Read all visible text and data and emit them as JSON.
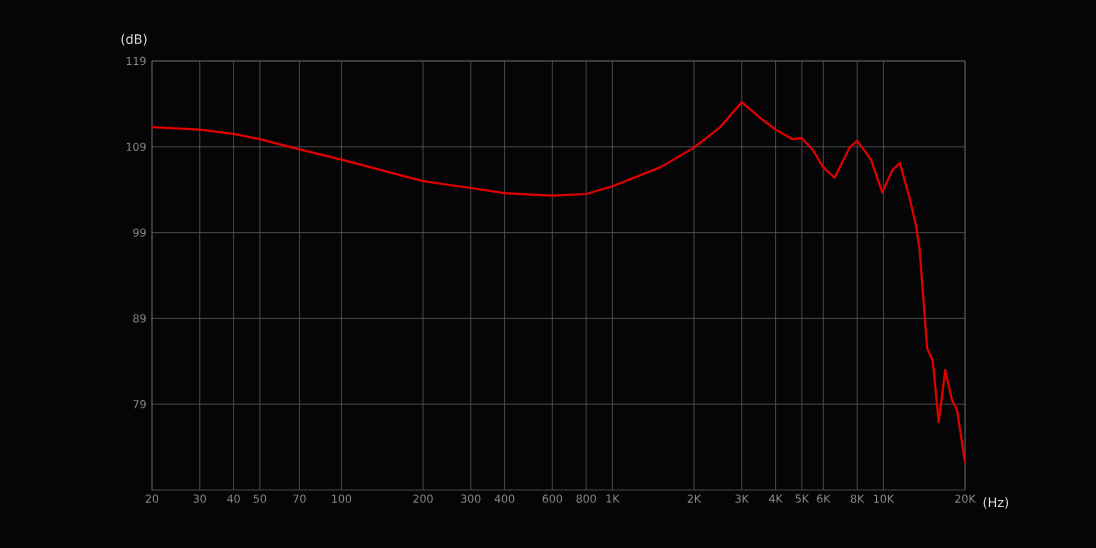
{
  "chart_data": {
    "type": "line",
    "xlabel": "(Hz)",
    "ylabel": "(dB)",
    "log": "x",
    "grid": true,
    "marker": "none",
    "line_style": "solid",
    "xlim": [
      20,
      20000
    ],
    "ylim": [
      69,
      119
    ],
    "xticks": [
      20,
      30,
      40,
      50,
      70,
      100,
      200,
      300,
      400,
      600,
      800,
      {
        "value": 1000,
        "label": "1K"
      },
      {
        "value": 2000,
        "label": "2K"
      },
      {
        "value": 3000,
        "label": "3K"
      },
      {
        "value": 4000,
        "label": "4K"
      },
      {
        "value": 5000,
        "label": "5K"
      },
      {
        "value": 6000,
        "label": "6K"
      },
      {
        "value": 8000,
        "label": "8K"
      },
      {
        "value": 10000,
        "label": "10K"
      },
      {
        "value": 20000,
        "label": "20K"
      }
    ],
    "yticks": [
      79,
      89,
      99,
      109,
      119
    ],
    "x": [
      20,
      30,
      40,
      50,
      70,
      100,
      200,
      300,
      400,
      600,
      800,
      1000,
      1500,
      2000,
      2500,
      3000,
      3500,
      4000,
      4600,
      5000,
      5500,
      6000,
      6600,
      7500,
      8000,
      9000,
      9900,
      10800,
      11500,
      12400,
      13200,
      13600,
      14500,
      15200,
      16000,
      16900,
      17900,
      18700,
      20000
    ],
    "series": [
      {
        "color": "#e00000",
        "values": [
          111.3,
          111.0,
          110.5,
          109.9,
          108.7,
          107.5,
          105.0,
          104.2,
          103.6,
          103.3,
          103.5,
          104.4,
          106.6,
          108.9,
          111.3,
          114.2,
          112.4,
          111.0,
          109.9,
          110.0,
          108.6,
          106.6,
          105.4,
          108.9,
          109.7,
          107.5,
          103.7,
          106.3,
          107.1,
          103.4,
          99.8,
          97.0,
          85.5,
          84.1,
          76.9,
          83.0,
          79.5,
          78.3,
          72.2
        ]
      }
    ]
  }
}
